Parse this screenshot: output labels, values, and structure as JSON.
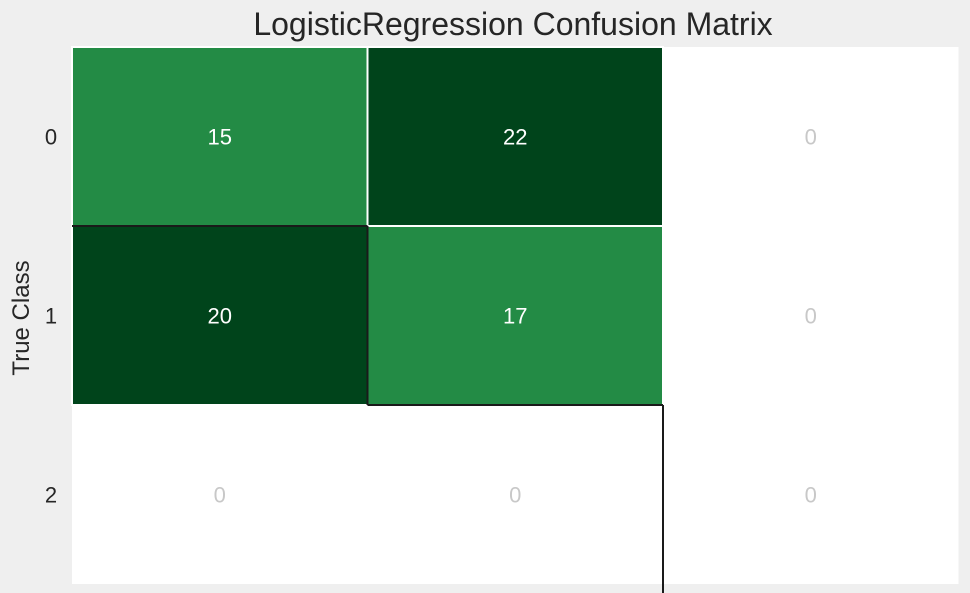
{
  "chart_data": {
    "type": "heatmap",
    "title": "LogisticRegression Confusion Matrix",
    "xlabel": "",
    "ylabel": "True Class",
    "row_labels": [
      "0",
      "1",
      "2"
    ],
    "col_labels": [],
    "values": [
      [
        15,
        22,
        0
      ],
      [
        20,
        17,
        0
      ],
      [
        0,
        0,
        0
      ]
    ],
    "colors": {
      "background": "#efefef",
      "dark_green": "#00441b",
      "mid_green": "#238b45",
      "zero_cell": "#ffffff",
      "text_on_dark": "#ffffff",
      "text_zero": "#c8c8c8",
      "title_text": "#262626",
      "label_text": "#262626",
      "cell_border": "#ffffff",
      "highlight_edge": "#1a1a1a"
    }
  }
}
